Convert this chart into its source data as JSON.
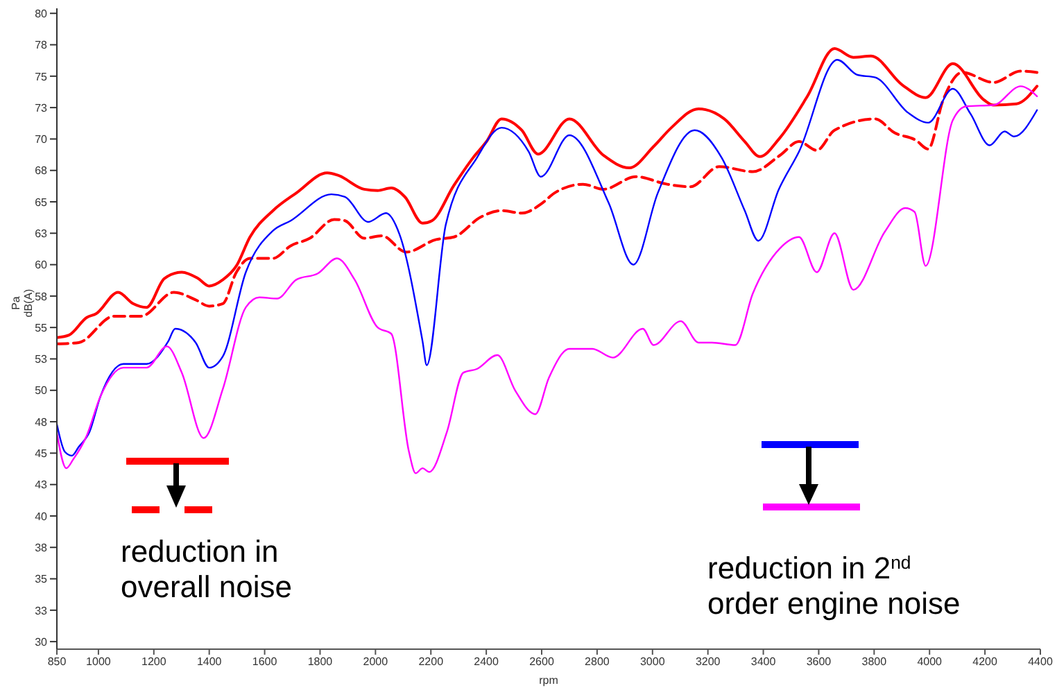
{
  "chart_data": {
    "type": "line",
    "xlabel": "rpm",
    "ylabel": "Pa\ndB(A)",
    "xlim": [
      850,
      4400
    ],
    "xticks": [
      850,
      1000,
      1200,
      1400,
      1600,
      1800,
      2000,
      2200,
      2400,
      2600,
      2800,
      3000,
      3200,
      3400,
      3600,
      3800,
      4000,
      4200,
      4400
    ],
    "ylim": [
      29.4,
      80.4
    ],
    "yticks": [
      30,
      {
        "value": 32.5,
        "label": "33"
      },
      35,
      {
        "value": 37.5,
        "label": "38"
      },
      40,
      {
        "value": 42.5,
        "label": "43"
      },
      45,
      {
        "value": 47.5,
        "label": "48"
      },
      50,
      {
        "value": 52.5,
        "label": "53"
      },
      55,
      {
        "value": 57.5,
        "label": "58"
      },
      60,
      {
        "value": 62.5,
        "label": "63"
      },
      65,
      {
        "value": 67.5,
        "label": "68"
      },
      70,
      {
        "value": 72.5,
        "label": "73"
      },
      75,
      {
        "value": 77.5,
        "label": "78"
      },
      80
    ],
    "marker": "none",
    "series": [
      {
        "color": "#ff0000",
        "line_style": "solid",
        "x": [
          850,
          894,
          958,
          992,
          1071,
          1125,
          1174,
          1238,
          1301,
          1360,
          1400,
          1449,
          1498,
          1547,
          1630,
          1714,
          1826,
          1866,
          1959,
          2008,
          2057,
          2106,
          2170,
          2204,
          2283,
          2352,
          2401,
          2455,
          2528,
          2587,
          2700,
          2823,
          2916,
          3004,
          3068,
          3166,
          3259,
          3333,
          3387,
          3460,
          3559,
          3657,
          3725,
          3789,
          3902,
          3986,
          4084,
          4197,
          4231,
          4314,
          4388
        ],
        "values": [
          54.2,
          54.4,
          55.8,
          56.1,
          57.8,
          56.9,
          56.6,
          58.9,
          59.4,
          58.9,
          58.3,
          58.8,
          59.9,
          62.2,
          64.3,
          65.7,
          67.3,
          67.1,
          66.0,
          65.9,
          66.1,
          65.4,
          63.3,
          63.5,
          66.3,
          68.5,
          69.8,
          71.6,
          70.7,
          68.8,
          71.6,
          68.7,
          67.7,
          69.4,
          70.9,
          72.4,
          71.6,
          69.8,
          68.6,
          70.1,
          73.4,
          77.2,
          76.5,
          76.6,
          74.3,
          73.3,
          76.0,
          73.1,
          72.7,
          72.8,
          74.2
        ]
      },
      {
        "color": "#ff0000",
        "line_style": "dashed",
        "x": [
          850,
          929,
          1056,
          1154,
          1272,
          1351,
          1400,
          1449,
          1498,
          1547,
          1630,
          1694,
          1763,
          1851,
          1890,
          1959,
          2023,
          2111,
          2219,
          2283,
          2381,
          2455,
          2528,
          2602,
          2646,
          2749,
          2823,
          2940,
          3053,
          3137,
          3240,
          3362,
          3460,
          3529,
          3593,
          3657,
          3804,
          3873,
          3951,
          3995,
          4049,
          4118,
          4231,
          4329,
          4388
        ],
        "values": [
          53.7,
          53.8,
          55.9,
          55.9,
          57.8,
          57.2,
          56.7,
          56.9,
          59.4,
          60.5,
          60.5,
          61.5,
          62.1,
          63.6,
          63.5,
          62.1,
          62.3,
          61.0,
          62.0,
          62.2,
          63.8,
          64.3,
          64.1,
          64.9,
          65.7,
          66.4,
          66.0,
          67.0,
          66.4,
          66.2,
          67.8,
          67.4,
          68.7,
          69.8,
          69.1,
          70.7,
          71.6,
          70.5,
          69.9,
          69.2,
          73.1,
          75.3,
          74.5,
          75.4,
          75.3
        ]
      },
      {
        "color": "#0000ff",
        "line_style": "solid",
        "x": [
          850,
          879,
          904,
          929,
          968,
          1007,
          1090,
          1174,
          1252,
          1277,
          1351,
          1400,
          1449,
          1532,
          1630,
          1694,
          1841,
          1890,
          1974,
          2038,
          2087,
          2170,
          2185,
          2254,
          2366,
          2455,
          2553,
          2597,
          2700,
          2842,
          2931,
          3019,
          3152,
          3250,
          3333,
          3382,
          3456,
          3529,
          3667,
          3740,
          3804,
          3922,
          3995,
          4084,
          4148,
          4217,
          4271,
          4305,
          4388
        ],
        "values": [
          47.3,
          45.1,
          44.8,
          45.5,
          46.7,
          49.5,
          52.1,
          52.1,
          53.9,
          54.9,
          53.8,
          51.8,
          52.7,
          59.4,
          62.7,
          63.5,
          65.6,
          65.4,
          63.4,
          64.1,
          62.4,
          53.9,
          52.0,
          63.2,
          68.5,
          70.9,
          69.0,
          67.0,
          70.3,
          64.9,
          60.0,
          65.7,
          70.7,
          68.5,
          64.3,
          61.9,
          66.0,
          69.0,
          76.3,
          75.1,
          74.9,
          72.1,
          71.3,
          74.0,
          72.0,
          69.5,
          70.6,
          70.2,
          72.3
        ]
      },
      {
        "color": "#ff00ff",
        "line_style": "solid",
        "x": [
          850,
          884,
          909,
          958,
          1007,
          1090,
          1174,
          1247,
          1301,
          1380,
          1449,
          1532,
          1581,
          1645,
          1714,
          1792,
          1861,
          1925,
          2008,
          2057,
          2121,
          2145,
          2170,
          2194,
          2258,
          2317,
          2366,
          2440,
          2504,
          2577,
          2626,
          2700,
          2783,
          2857,
          2965,
          3004,
          3102,
          3166,
          3215,
          3299,
          3362,
          3460,
          3529,
          3593,
          3657,
          3725,
          3838,
          3912,
          3946,
          3986,
          4084,
          4133,
          4231,
          4329,
          4388
        ],
        "values": [
          46.6,
          43.8,
          44.5,
          46.4,
          49.5,
          51.8,
          51.8,
          53.5,
          51.4,
          46.2,
          50.1,
          56.6,
          57.4,
          57.3,
          58.8,
          59.3,
          60.5,
          58.8,
          55.0,
          54.5,
          45.1,
          43.4,
          43.8,
          43.5,
          46.7,
          51.4,
          51.7,
          52.8,
          50.0,
          48.1,
          51.0,
          53.3,
          53.3,
          52.6,
          54.9,
          53.6,
          55.5,
          53.8,
          53.8,
          53.6,
          57.7,
          61.3,
          62.2,
          59.4,
          62.5,
          58.0,
          62.6,
          64.5,
          64.2,
          59.9,
          71.5,
          72.6,
          72.7,
          74.2,
          73.4
        ]
      }
    ],
    "annotations": [
      "reduction in\noverall noise",
      "reduction in 2$^{nd}$\norder engine noise"
    ]
  }
}
